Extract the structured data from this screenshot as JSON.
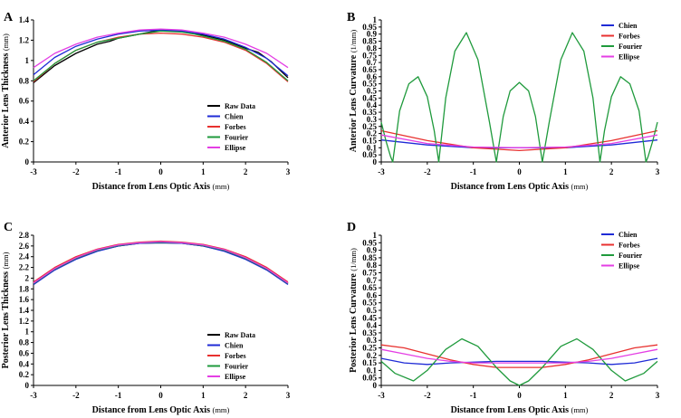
{
  "colors": {
    "raw": "#000000",
    "chien": "#1f2bd6",
    "forbes": "#e8312f",
    "fourier": "#1f9a3c",
    "ellipse": "#e43ee4"
  },
  "chart_data": [
    {
      "panel": "A",
      "type": "line",
      "title": "",
      "xlabel": "Distance from Lens Optic Axis",
      "xlabel_unit": "(mm)",
      "ylabel": "Anterior Lens Thickness",
      "ylabel_unit": "(mm)",
      "xlim": [
        -3,
        3
      ],
      "ylim": [
        0,
        1.4
      ],
      "xticks": [
        -3,
        -2,
        -1,
        0,
        1,
        2,
        3
      ],
      "yticks": [
        0,
        0.2,
        0.4,
        0.6,
        0.8,
        1,
        1.2,
        1.4
      ],
      "legend_position": "bottom-right",
      "legend": [
        "Raw Data",
        "Chien",
        "Forbes",
        "Fourier",
        "Ellipse"
      ],
      "series": [
        {
          "name": "Raw Data",
          "color_key": "raw",
          "x": [
            -3,
            -2.5,
            -2,
            -1.5,
            -1.2,
            -1,
            -0.5,
            0,
            0.5,
            1,
            1.5,
            2,
            2.3,
            2.6,
            3
          ],
          "y": [
            0.78,
            0.95,
            1.07,
            1.16,
            1.19,
            1.22,
            1.26,
            1.3,
            1.29,
            1.25,
            1.2,
            1.12,
            1.08,
            0.99,
            0.83
          ]
        },
        {
          "name": "Chien",
          "color_key": "chien",
          "x": [
            -3,
            -2.5,
            -2,
            -1.5,
            -1,
            -0.5,
            0,
            0.5,
            1,
            1.5,
            2,
            2.5,
            3
          ],
          "y": [
            0.86,
            1.03,
            1.14,
            1.21,
            1.26,
            1.29,
            1.3,
            1.29,
            1.26,
            1.21,
            1.13,
            1.02,
            0.85
          ]
        },
        {
          "name": "Forbes",
          "color_key": "forbes",
          "x": [
            -3,
            -2.5,
            -2,
            -1.5,
            -1,
            -0.5,
            0,
            0.5,
            1,
            1.5,
            2,
            2.5,
            3
          ],
          "y": [
            0.79,
            0.97,
            1.1,
            1.18,
            1.23,
            1.26,
            1.27,
            1.26,
            1.23,
            1.18,
            1.1,
            0.97,
            0.79
          ]
        },
        {
          "name": "Fourier",
          "color_key": "fourier",
          "x": [
            -3,
            -2.5,
            -2,
            -1.5,
            -1,
            -0.5,
            0,
            0.5,
            0.8,
            1,
            1.5,
            2,
            2.5,
            3
          ],
          "y": [
            0.8,
            0.97,
            1.1,
            1.18,
            1.22,
            1.26,
            1.29,
            1.28,
            1.26,
            1.24,
            1.19,
            1.11,
            0.98,
            0.8
          ]
        },
        {
          "name": "Ellipse",
          "color_key": "ellipse",
          "x": [
            -3,
            -2.5,
            -2,
            -1.5,
            -1,
            -0.5,
            0,
            0.5,
            1,
            1.5,
            2,
            2.5,
            3
          ],
          "y": [
            0.93,
            1.07,
            1.16,
            1.23,
            1.27,
            1.3,
            1.31,
            1.3,
            1.27,
            1.23,
            1.16,
            1.07,
            0.93
          ]
        }
      ]
    },
    {
      "panel": "B",
      "type": "line",
      "title": "",
      "xlabel": "Distance from Lens Optic Axis",
      "xlabel_unit": "(mm)",
      "ylabel": "Anterior Lens Curvature",
      "ylabel_unit": "(1/mm)",
      "xlim": [
        -3,
        3
      ],
      "ylim": [
        0,
        1
      ],
      "xticks": [
        -3,
        -2,
        -1,
        0,
        1,
        2,
        3
      ],
      "yticks": [
        0,
        0.05,
        0.1,
        0.15,
        0.2,
        0.25,
        0.3,
        0.35,
        0.4,
        0.45,
        0.5,
        0.55,
        0.6,
        0.65,
        0.7,
        0.75,
        0.8,
        0.85,
        0.9,
        0.95,
        1
      ],
      "legend_position": "top-right",
      "legend": [
        "Chien",
        "Forbes",
        "Fourier",
        "Ellipse"
      ],
      "series": [
        {
          "name": "Chien",
          "color_key": "chien",
          "x": [
            -3,
            -2,
            -1,
            0,
            1,
            2,
            3
          ],
          "y": [
            0.155,
            0.12,
            0.1,
            0.1,
            0.1,
            0.12,
            0.155
          ]
        },
        {
          "name": "Forbes",
          "color_key": "forbes",
          "x": [
            -3,
            -2,
            -1,
            0,
            1,
            2,
            3
          ],
          "y": [
            0.22,
            0.15,
            0.1,
            0.08,
            0.1,
            0.15,
            0.22
          ]
        },
        {
          "name": "Fourier",
          "color_key": "fourier",
          "x": [
            -3,
            -2.9,
            -2.8,
            -2.75,
            -2.6,
            -2.4,
            -2.2,
            -2.0,
            -1.85,
            -1.75,
            -1.6,
            -1.4,
            -1.15,
            -0.9,
            -0.65,
            -0.5,
            -0.35,
            -0.2,
            0,
            0.2,
            0.35,
            0.5,
            0.65,
            0.9,
            1.15,
            1.4,
            1.6,
            1.75,
            1.85,
            2.0,
            2.2,
            2.4,
            2.6,
            2.75,
            2.8,
            2.9,
            3
          ],
          "y": [
            0.28,
            0.15,
            0.04,
            0,
            0.36,
            0.55,
            0.6,
            0.46,
            0.22,
            0,
            0.45,
            0.78,
            0.91,
            0.72,
            0.28,
            0,
            0.32,
            0.5,
            0.56,
            0.5,
            0.32,
            0,
            0.28,
            0.72,
            0.91,
            0.78,
            0.45,
            0,
            0.22,
            0.46,
            0.6,
            0.55,
            0.36,
            0,
            0.04,
            0.15,
            0.28
          ]
        },
        {
          "name": "Ellipse",
          "color_key": "ellipse",
          "x": [
            -3,
            -2,
            -1,
            0,
            1,
            2,
            3
          ],
          "y": [
            0.19,
            0.13,
            0.105,
            0.1,
            0.105,
            0.13,
            0.19
          ]
        }
      ]
    },
    {
      "panel": "C",
      "type": "line",
      "title": "",
      "xlabel": "Distance from Lens Optic Axis",
      "xlabel_unit": "(mm)",
      "ylabel": "Posterior Lens Thickness",
      "ylabel_unit": "(mm)",
      "xlim": [
        -3,
        3
      ],
      "ylim": [
        0,
        2.8
      ],
      "xticks": [
        -3,
        -2,
        -1,
        0,
        1,
        2,
        3
      ],
      "yticks": [
        0,
        0.2,
        0.4,
        0.6,
        0.8,
        1,
        1.2,
        1.4,
        1.6,
        1.8,
        2,
        2.2,
        2.4,
        2.6,
        2.8
      ],
      "legend_position": "bottom-right",
      "legend": [
        "Raw Data",
        "Chien",
        "Forbes",
        "Fourier",
        "Ellipse"
      ],
      "series": [
        {
          "name": "Raw Data",
          "color_key": "raw",
          "x": [
            -3,
            -2.5,
            -2,
            -1.5,
            -1,
            -0.5,
            0,
            0.5,
            1,
            1.5,
            2,
            2.5,
            3
          ],
          "y": [
            1.88,
            2.16,
            2.36,
            2.51,
            2.6,
            2.65,
            2.66,
            2.65,
            2.6,
            2.51,
            2.36,
            2.16,
            1.9
          ]
        },
        {
          "name": "Chien",
          "color_key": "chien",
          "x": [
            -3,
            -2.5,
            -2,
            -1.5,
            -1,
            -0.5,
            0,
            0.5,
            1,
            1.5,
            2,
            2.5,
            3
          ],
          "y": [
            1.88,
            2.15,
            2.35,
            2.5,
            2.6,
            2.65,
            2.66,
            2.65,
            2.6,
            2.5,
            2.35,
            2.15,
            1.88
          ]
        },
        {
          "name": "Forbes",
          "color_key": "forbes",
          "x": [
            -3,
            -2.5,
            -2,
            -1.5,
            -1,
            -0.5,
            0,
            0.5,
            1,
            1.5,
            2,
            2.5,
            3
          ],
          "y": [
            1.93,
            2.2,
            2.4,
            2.54,
            2.63,
            2.67,
            2.69,
            2.67,
            2.63,
            2.54,
            2.4,
            2.2,
            1.93
          ]
        },
        {
          "name": "Fourier",
          "color_key": "fourier",
          "x": [
            -3,
            -2.5,
            -2,
            -1.5,
            -1,
            -0.5,
            0,
            0.5,
            1,
            1.5,
            2,
            2.5,
            3
          ],
          "y": [
            1.9,
            2.17,
            2.37,
            2.52,
            2.61,
            2.66,
            2.67,
            2.66,
            2.61,
            2.52,
            2.37,
            2.17,
            1.9
          ]
        },
        {
          "name": "Ellipse",
          "color_key": "ellipse",
          "x": [
            -3,
            -2.5,
            -2,
            -1.5,
            -1,
            -0.5,
            0,
            0.5,
            1,
            1.5,
            2,
            2.5,
            3
          ],
          "y": [
            1.91,
            2.18,
            2.38,
            2.53,
            2.62,
            2.66,
            2.68,
            2.66,
            2.62,
            2.53,
            2.38,
            2.18,
            1.91
          ]
        }
      ]
    },
    {
      "panel": "D",
      "type": "line",
      "title": "",
      "xlabel": "Distance from Lens Optic Axis",
      "xlabel_unit": "(mm)",
      "ylabel": "Posterior Lens Curvature",
      "ylabel_unit": "(1/mm)",
      "xlim": [
        -3,
        3
      ],
      "ylim": [
        0,
        1
      ],
      "xticks": [
        -3,
        -2,
        -1,
        0,
        1,
        2,
        3
      ],
      "yticks": [
        0,
        0.05,
        0.1,
        0.15,
        0.2,
        0.25,
        0.3,
        0.35,
        0.4,
        0.45,
        0.5,
        0.55,
        0.6,
        0.65,
        0.7,
        0.75,
        0.8,
        0.85,
        0.9,
        0.95,
        1
      ],
      "legend_position": "top-right",
      "legend": [
        "Chien",
        "Forbes",
        "Fourier",
        "Ellipse"
      ],
      "series": [
        {
          "name": "Chien",
          "color_key": "chien",
          "x": [
            -3,
            -2.5,
            -2,
            -1.5,
            -1,
            -0.5,
            0,
            0.5,
            1,
            1.5,
            2,
            2.5,
            3
          ],
          "y": [
            0.18,
            0.15,
            0.14,
            0.15,
            0.155,
            0.16,
            0.16,
            0.16,
            0.155,
            0.15,
            0.14,
            0.15,
            0.18
          ]
        },
        {
          "name": "Forbes",
          "color_key": "forbes",
          "x": [
            -3,
            -2.5,
            -2,
            -1.5,
            -1,
            -0.5,
            0,
            0.5,
            1,
            1.5,
            2,
            2.5,
            3
          ],
          "y": [
            0.27,
            0.25,
            0.21,
            0.17,
            0.14,
            0.12,
            0.12,
            0.12,
            0.14,
            0.17,
            0.21,
            0.25,
            0.27
          ]
        },
        {
          "name": "Fourier",
          "color_key": "fourier",
          "x": [
            -3,
            -2.7,
            -2.3,
            -2.0,
            -1.6,
            -1.25,
            -0.9,
            -0.5,
            -0.2,
            0,
            0.2,
            0.5,
            0.9,
            1.25,
            1.6,
            2.0,
            2.3,
            2.7,
            3
          ],
          "y": [
            0.16,
            0.08,
            0.03,
            0.1,
            0.24,
            0.31,
            0.26,
            0.12,
            0.03,
            0.0,
            0.03,
            0.12,
            0.26,
            0.31,
            0.24,
            0.1,
            0.03,
            0.08,
            0.16
          ]
        },
        {
          "name": "Ellipse",
          "color_key": "ellipse",
          "x": [
            -3,
            -2.5,
            -2,
            -1.5,
            -1,
            -0.5,
            0,
            0.5,
            1,
            1.5,
            2,
            2.5,
            3
          ],
          "y": [
            0.24,
            0.21,
            0.18,
            0.16,
            0.15,
            0.15,
            0.15,
            0.15,
            0.15,
            0.16,
            0.18,
            0.21,
            0.24
          ]
        }
      ]
    }
  ]
}
